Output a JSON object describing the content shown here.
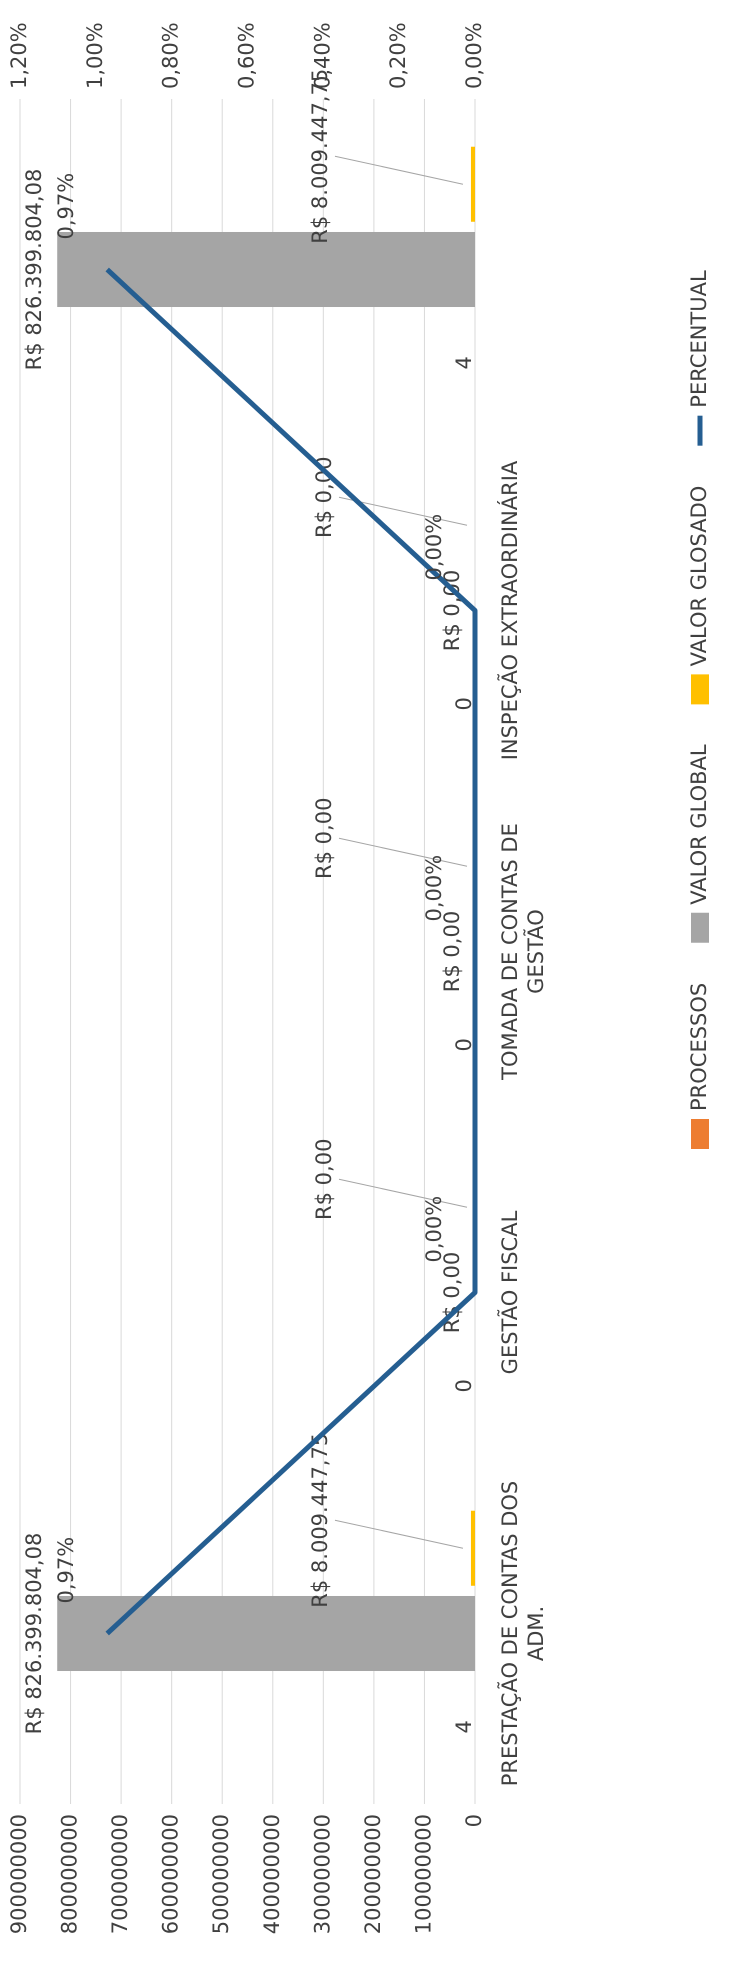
{
  "chart_data": {
    "type": "bar",
    "categories": [
      "PRESTAÇÃO DE CONTAS DOS ADM.",
      "GESTÃO FISCAL",
      "TOMADA DE CONTAS DE GESTÃO",
      "INSPEÇÃO EXTRAORDINÁRIA",
      null
    ],
    "series": [
      {
        "name": "PROCESSOS",
        "color": "#ed7d31",
        "values": [
          4,
          0,
          0,
          0,
          4
        ]
      },
      {
        "name": "VALOR GLOBAL",
        "color": "#a5a5a5",
        "values": [
          826399804.08,
          0,
          0,
          0,
          826399804.08
        ],
        "value_labels": [
          "R$ 826.399.804,08",
          "R$ 0,00",
          "R$ 0,00",
          "R$ 0,00",
          "R$ 826.399.804,08"
        ]
      },
      {
        "name": "VALOR GLOSADO",
        "color": "#ffc000",
        "values": [
          8009447.75,
          0,
          0,
          0,
          8009447.75
        ],
        "value_labels": [
          "R$ 8.009.447,75",
          "R$ 0,00",
          "R$ 0,00",
          "R$ 0,00",
          "R$ 8.009.447,75"
        ]
      },
      {
        "name": "PERCENTUAL",
        "color": "#255e91",
        "type": "line",
        "axis": "y2",
        "values": [
          0.97,
          0,
          0,
          0,
          0.97
        ],
        "value_labels": [
          "0,97%",
          "0,00%",
          "0,00%",
          "0,00%",
          "0,97%"
        ]
      }
    ],
    "ylim": [
      0,
      900000000
    ],
    "yticks": [
      0,
      100000000,
      200000000,
      300000000,
      400000000,
      500000000,
      600000000,
      700000000,
      800000000,
      900000000
    ],
    "y2lim": [
      0,
      1.2
    ],
    "y2ticks": [
      {
        "value": 0,
        "label": "0,00%"
      },
      {
        "value": 0.2,
        "label": "0,20%"
      },
      {
        "value": 0.4,
        "label": "0,40%"
      },
      {
        "value": 0.6,
        "label": "0,60%"
      },
      {
        "value": 0.8,
        "label": "0,80%"
      },
      {
        "value": 1.0,
        "label": "1,00%"
      },
      {
        "value": 1.2,
        "label": "1,20%"
      }
    ],
    "grid": true,
    "legend": "bottom"
  }
}
